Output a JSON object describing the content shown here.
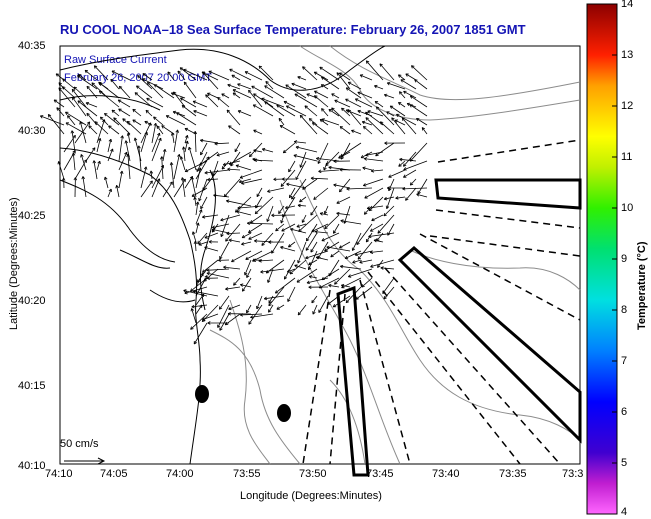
{
  "title": "RU COOL  NOAA–18  Sea Surface Temperature:  February 26, 2007 1851 GMT",
  "subtitle_line1": "Raw Surface Current",
  "subtitle_line2": "February 26, 2007 20:00 GMT",
  "x_axis": {
    "label": "Longitude (Degrees:Minutes)",
    "ticks": [
      "74:10",
      "74:05",
      "74:00",
      "73:55",
      "73:50",
      "73:45",
      "73:40",
      "73:35",
      "73:3"
    ]
  },
  "y_axis": {
    "label": "Latitude (Degrees:Minutes)",
    "ticks": [
      "40:35",
      "40:30",
      "40:25",
      "40:20",
      "40:15",
      "40:10"
    ]
  },
  "colorbar": {
    "label": "Temperature (°C)",
    "ticks": [
      "14",
      "13",
      "12",
      "11",
      "10",
      "9",
      "8",
      "7",
      "6",
      "5",
      "4"
    ],
    "min": 4,
    "max": 14
  },
  "scale_label": "50 cm/s",
  "colors": {
    "title": "#1414b4",
    "land_outline": "#000000",
    "bathymetry": "#888888"
  }
}
